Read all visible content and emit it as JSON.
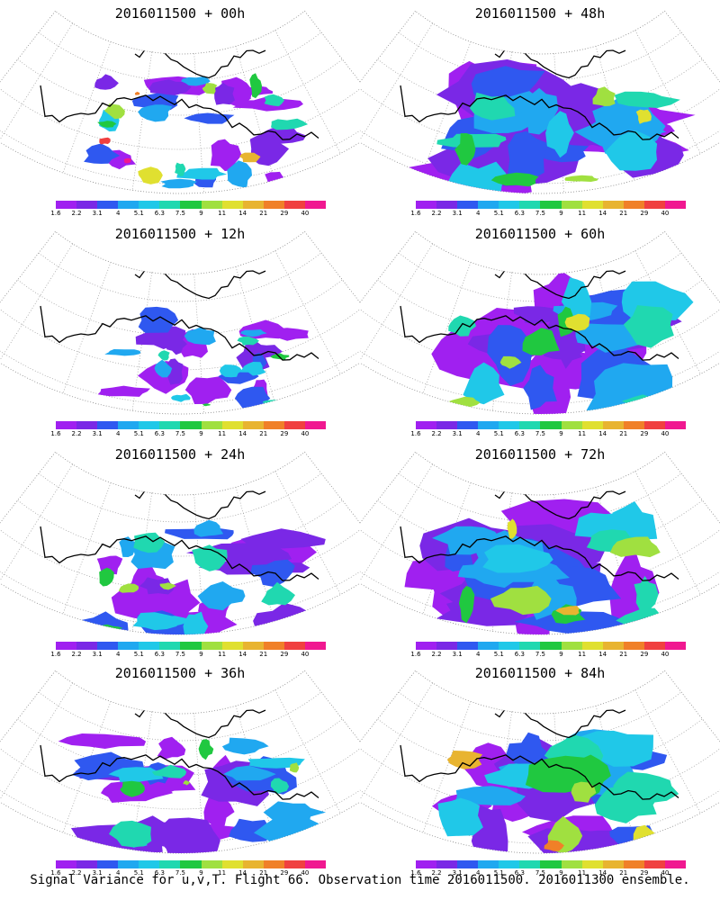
{
  "caption": "Signal Variance for u,v,T. Flight 66. Observation time 2016011500. 2016011300 ensemble.",
  "colorbar": {
    "ticks": [
      "1.6",
      "2.2",
      "3.1",
      "4",
      "5.1",
      "6.3",
      "7.5",
      "9",
      "11",
      "14",
      "21",
      "29",
      "40"
    ],
    "colors": [
      "#a020f0",
      "#7a28e6",
      "#2f58f0",
      "#20a8f0",
      "#20c8e8",
      "#20d8b0",
      "#20c840",
      "#a0e040",
      "#e0e030",
      "#e8b430",
      "#f08028",
      "#f04040",
      "#f01890"
    ]
  },
  "chart_data": [
    {
      "type": "heatmap",
      "title": "2016011500 + 00h",
      "lead_hours": 0,
      "max_level_index": 12,
      "coverage": "sparse"
    },
    {
      "type": "heatmap",
      "title": "2016011500 + 12h",
      "lead_hours": 12,
      "max_level_index": 6,
      "coverage": "sparse"
    },
    {
      "type": "heatmap",
      "title": "2016011500 + 24h",
      "lead_hours": 24,
      "max_level_index": 7,
      "coverage": "moderate"
    },
    {
      "type": "heatmap",
      "title": "2016011500 + 36h",
      "lead_hours": 36,
      "max_level_index": 7,
      "coverage": "moderate"
    },
    {
      "type": "heatmap",
      "title": "2016011500 + 48h",
      "lead_hours": 48,
      "max_level_index": 8,
      "coverage": "broad"
    },
    {
      "type": "heatmap",
      "title": "2016011500 + 60h",
      "lead_hours": 60,
      "max_level_index": 8,
      "coverage": "broad"
    },
    {
      "type": "heatmap",
      "title": "2016011500 + 72h",
      "lead_hours": 72,
      "max_level_index": 9,
      "coverage": "broad"
    },
    {
      "type": "heatmap",
      "title": "2016011500 + 84h",
      "lead_hours": 84,
      "max_level_index": 10,
      "coverage": "broad"
    }
  ]
}
